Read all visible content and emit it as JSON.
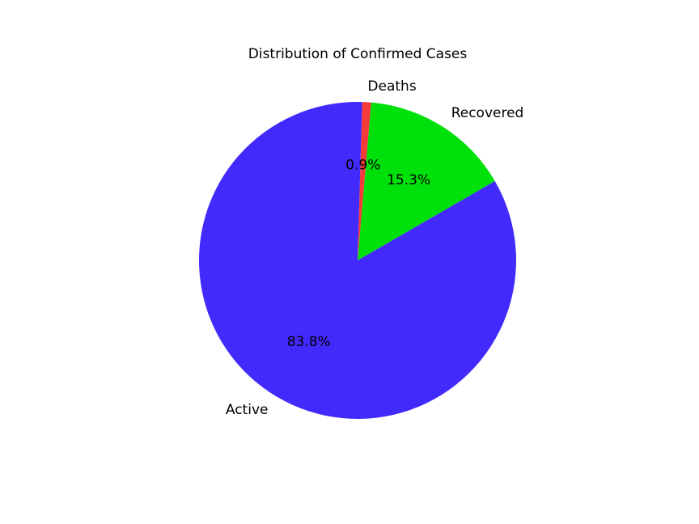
{
  "chart_data": {
    "type": "pie",
    "title": "Distribution of Confirmed Cases",
    "legend": "none",
    "slices": [
      {
        "label": "Recovered",
        "value": 15.3,
        "pct_label": "15.3%",
        "color": "#00e00a"
      },
      {
        "label": "Deaths",
        "value": 0.9,
        "pct_label": "0.9%",
        "color": "#f53a3a"
      },
      {
        "label": "Active",
        "value": 83.8,
        "pct_label": "83.8%",
        "color": "#4229fc"
      }
    ]
  }
}
